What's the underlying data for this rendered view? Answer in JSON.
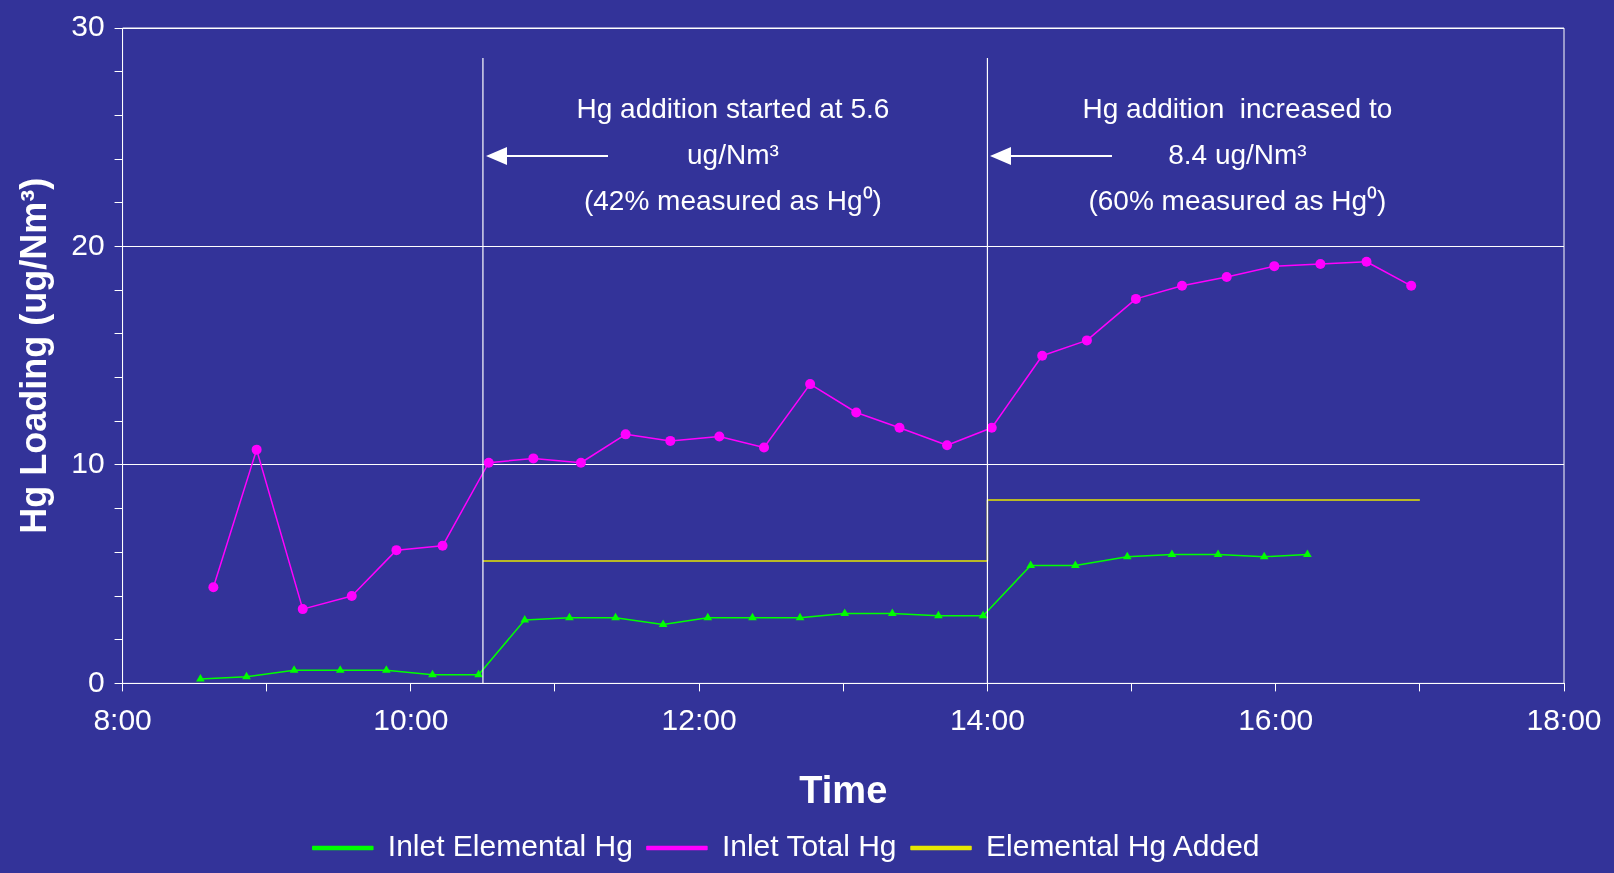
{
  "chart_data": {
    "type": "line",
    "xlabel": "Time",
    "ylabel": "Hg Loading (ug/Nm³)",
    "xlim": [
      8,
      18
    ],
    "xticks": [
      {
        "value": 8,
        "label": "8:00"
      },
      {
        "value": 9,
        "label": null
      },
      {
        "value": 10,
        "label": "10:00"
      },
      {
        "value": 11,
        "label": null
      },
      {
        "value": 12,
        "label": "12:00"
      },
      {
        "value": 13,
        "label": null
      },
      {
        "value": 14,
        "label": "14:00"
      },
      {
        "value": 15,
        "label": null
      },
      {
        "value": 16,
        "label": "16:00"
      },
      {
        "value": 17,
        "label": null
      },
      {
        "value": 18,
        "label": "18:00"
      }
    ],
    "ylim": [
      0,
      30
    ],
    "yticks": [
      0,
      {
        "value": 2,
        "label": null
      },
      {
        "value": 4,
        "label": null
      },
      {
        "value": 6,
        "label": null
      },
      {
        "value": 8,
        "label": null
      },
      10,
      {
        "value": 12,
        "label": null
      },
      {
        "value": 14,
        "label": null
      },
      {
        "value": 16,
        "label": null
      },
      {
        "value": 18,
        "label": null
      },
      20,
      {
        "value": 22,
        "label": null
      },
      {
        "value": 24,
        "label": null
      },
      {
        "value": 26,
        "label": null
      },
      {
        "value": 28,
        "label": null
      },
      30
    ],
    "grid": "y",
    "legend": "bottom",
    "series": [
      {
        "name": "Inlet Elemental Hg",
        "color": "#00ff00",
        "marker": "triangle",
        "x": [
          8.54,
          8.86,
          9.19,
          9.51,
          9.83,
          10.15,
          10.47,
          10.79,
          11.1,
          11.42,
          11.75,
          12.06,
          12.37,
          12.7,
          13.01,
          13.34,
          13.66,
          13.97,
          14.3,
          14.61,
          14.97,
          15.28,
          15.6,
          15.92,
          16.22
        ],
        "values": [
          0.2,
          0.3,
          0.6,
          0.6,
          0.6,
          0.4,
          0.4,
          2.9,
          3.0,
          3.0,
          2.7,
          3.0,
          3.0,
          3.0,
          3.2,
          3.2,
          3.1,
          3.1,
          5.4,
          5.4,
          5.8,
          5.9,
          5.9,
          5.8,
          5.9
        ]
      },
      {
        "name": "Inlet Total Hg",
        "color": "#ff00ff",
        "marker": "circle",
        "x": [
          8.63,
          8.93,
          9.25,
          9.59,
          9.9,
          10.22,
          10.54,
          10.85,
          11.18,
          11.49,
          11.8,
          12.14,
          12.45,
          12.77,
          13.09,
          13.39,
          13.72,
          14.03,
          14.38,
          14.69,
          15.03,
          15.35,
          15.66,
          15.99,
          16.31,
          16.63,
          16.94
        ],
        "values": [
          4.4,
          10.7,
          3.4,
          4.0,
          6.1,
          6.3,
          10.1,
          10.3,
          10.1,
          11.4,
          11.1,
          11.3,
          10.8,
          13.7,
          12.4,
          11.7,
          10.9,
          11.7,
          15.0,
          15.7,
          17.6,
          18.2,
          18.6,
          19.1,
          19.2,
          19.3,
          18.2
        ]
      },
      {
        "name": "Elemental Hg Added",
        "color": "#e6e600",
        "marker": "none",
        "x": [
          10.5,
          14,
          14,
          17
        ],
        "values": [
          5.6,
          5.6,
          8.4,
          8.4
        ]
      }
    ],
    "ref_lines": [
      {
        "axis": "x",
        "value": 10.5,
        "color": "#ffffff"
      },
      {
        "axis": "x",
        "value": 14,
        "color": "#ffffff"
      }
    ],
    "annotations": [
      "Hg addition started at 5.6\nug/Nm³\n(42% measured as Hg⁰)",
      "Hg addition  increased to\n8.4 ug/Nm³\n(60% measured as Hg⁰)"
    ]
  }
}
